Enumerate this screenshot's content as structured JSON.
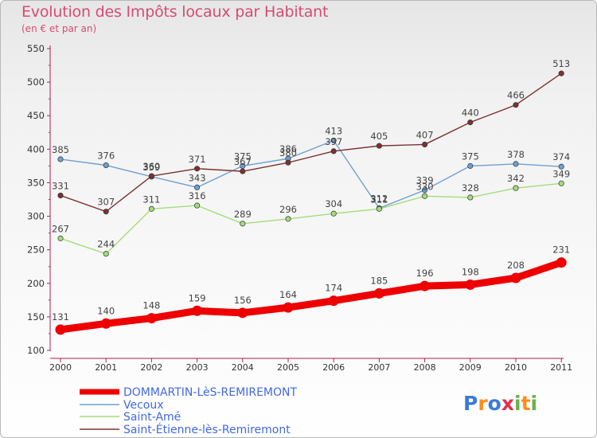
{
  "header": {
    "title": "Evolution des Impôts locaux par Habitant",
    "subtitle": "(en € et par an)"
  },
  "logo": {
    "text": "Proxiti"
  },
  "colors": {
    "title": "#d64c6f",
    "axis": "#b02050",
    "DOMMARTIN-LèS-REMIREMONT": "#ee0000",
    "Vecoux": "#6fa0d0",
    "Saint-Amé": "#a4dc7a",
    "Saint-Étienne-lès-Remiremont": "#7a3232"
  },
  "chart_data": {
    "type": "line",
    "title": "Evolution des Impôts locaux par Habitant",
    "subtitle": "(en € et par an)",
    "xlabel": "",
    "ylabel": "",
    "ylim": [
      100,
      550
    ],
    "yticks": [
      "100",
      "150",
      "200",
      "250",
      "300",
      "350",
      "400",
      "450",
      "500",
      "550"
    ],
    "grid": false,
    "legend_position": "bottom-left",
    "categories": [
      "2000",
      "2001",
      "2002",
      "2003",
      "2004",
      "2005",
      "2006",
      "2007",
      "2008",
      "2009",
      "2010",
      "2011"
    ],
    "series": [
      {
        "name": "DOMMARTIN-LèS-REMIREMONT",
        "values": [
          131,
          140,
          148,
          159,
          156,
          164,
          174,
          185,
          196,
          198,
          208,
          231
        ]
      },
      {
        "name": "Vecoux",
        "values": [
          385,
          376,
          359,
          343,
          375,
          386,
          413,
          312,
          339,
          375,
          378,
          374
        ]
      },
      {
        "name": "Saint-Amé",
        "values": [
          267,
          244,
          311,
          316,
          289,
          296,
          304,
          311,
          330,
          328,
          342,
          349
        ]
      },
      {
        "name": "Saint-Étienne-lès-Remiremont",
        "values": [
          331,
          307,
          360,
          371,
          367,
          380,
          397,
          405,
          407,
          440,
          466,
          513
        ]
      }
    ]
  }
}
